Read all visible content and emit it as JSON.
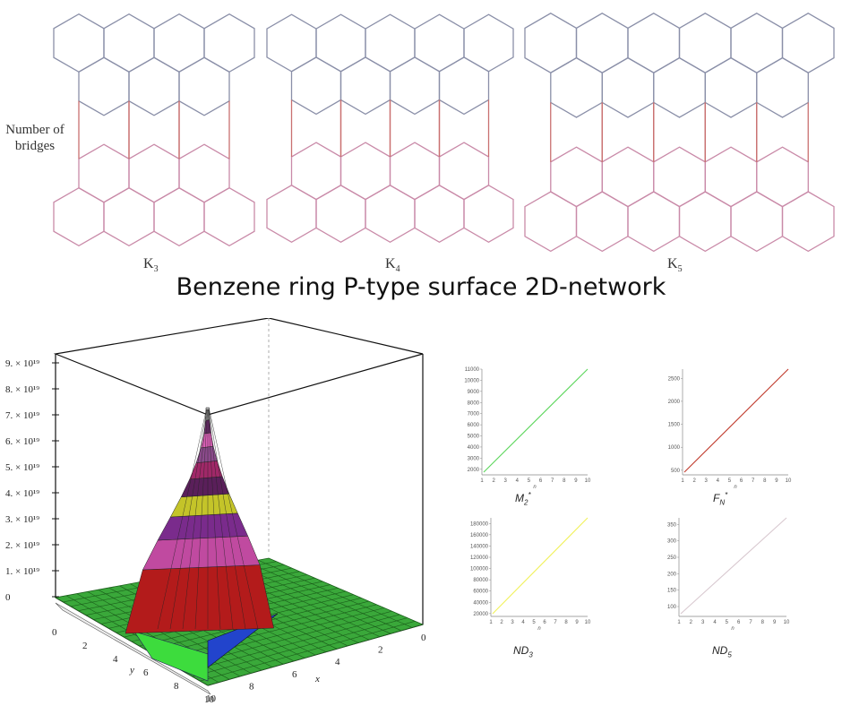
{
  "networks": {
    "side_label": "Number of\nbridges",
    "items": [
      {
        "label": "K",
        "sub": "3"
      },
      {
        "label": "K",
        "sub": "4"
      },
      {
        "label": "K",
        "sub": "5"
      }
    ],
    "title": "Benzene ring P-type surface 2D-network"
  },
  "surface": {
    "z_ticks": [
      "9. × 10¹⁹",
      "8. × 10¹⁹",
      "7. × 10¹⁹",
      "6. × 10¹⁹",
      "5. × 10¹⁹",
      "4. × 10¹⁹",
      "3. × 10¹⁹",
      "2. × 10¹⁹",
      "1. × 10¹⁹",
      "0"
    ],
    "y_ticks": [
      "0",
      "2",
      "4",
      "6",
      "8",
      "10"
    ],
    "x_ticks": [
      "10",
      "8",
      "6",
      "4",
      "2",
      "0"
    ],
    "xlabel": "x",
    "ylabel": "y"
  },
  "mini_plots": [
    {
      "label_main": "M",
      "label_sub": "2",
      "label_sup": "*",
      "color": "#5cd65c",
      "ymin": 1500,
      "ymax": 11000,
      "y_ticks": [
        "11000",
        "10000",
        "9000",
        "8000",
        "7000",
        "6000",
        "5000",
        "4000",
        "3000",
        "2000"
      ],
      "x_ticks": [
        "1",
        "2",
        "3",
        "4",
        "5",
        "6",
        "7",
        "8",
        "9",
        "10"
      ],
      "xlabel": "n"
    },
    {
      "label_main": "F",
      "label_sub": "N",
      "label_sup": "*",
      "color": "#c0392b",
      "ymin": 400,
      "ymax": 2700,
      "y_ticks": [
        "2500",
        "2000",
        "1500",
        "1000",
        "500"
      ],
      "x_ticks": [
        "1",
        "2",
        "3",
        "4",
        "5",
        "6",
        "7",
        "8",
        "9",
        "10"
      ],
      "xlabel": "n"
    },
    {
      "label_main": "ND",
      "label_sub": "3",
      "label_sup": "",
      "color": "#f1f15a",
      "ymin": 15000,
      "ymax": 190000,
      "y_ticks": [
        "180000",
        "160000",
        "140000",
        "120000",
        "100000",
        "80000",
        "60000",
        "40000",
        "20000"
      ],
      "x_ticks": [
        "1",
        "2",
        "3",
        "4",
        "5",
        "6",
        "7",
        "8",
        "9",
        "10"
      ],
      "xlabel": "n"
    },
    {
      "label_main": "ND",
      "label_sub": "5",
      "label_sup": "",
      "color": "#d8c8cf",
      "ymin": 70,
      "ymax": 370,
      "y_ticks": [
        "350",
        "300",
        "250",
        "200",
        "150",
        "100"
      ],
      "x_ticks": [
        "1",
        "2",
        "3",
        "4",
        "5",
        "6",
        "7",
        "8",
        "9",
        "10"
      ],
      "xlabel": "n"
    }
  ]
}
